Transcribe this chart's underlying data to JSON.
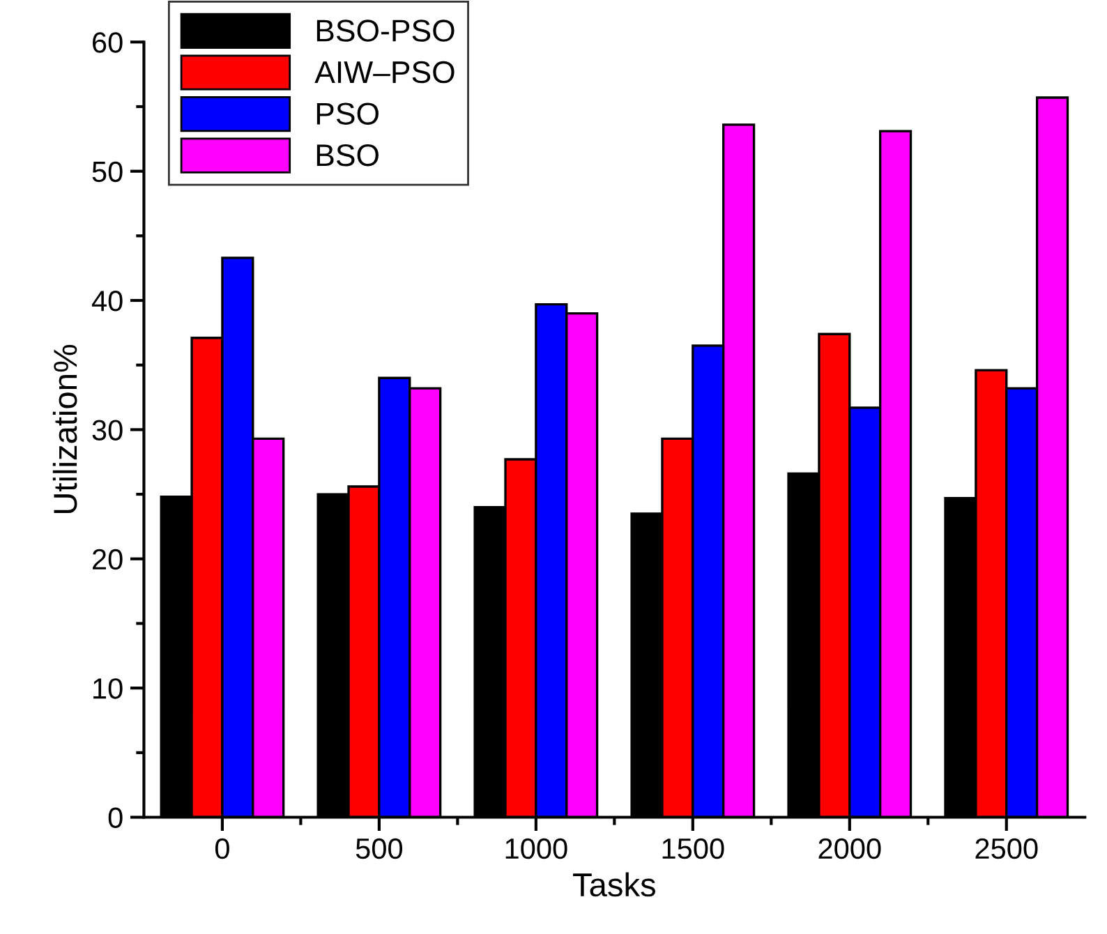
{
  "chart_data": {
    "type": "bar",
    "xlabel": "Tasks",
    "ylabel": "Utilization%",
    "categories": [
      "0",
      "500",
      "1000",
      "1500",
      "2000",
      "2500"
    ],
    "series": [
      {
        "name": "BSO-PSO",
        "color": "#000000",
        "values": [
          24.8,
          25.0,
          24.0,
          23.5,
          26.6,
          24.7
        ]
      },
      {
        "name": "AIW–PSO",
        "color": "#ff0000",
        "values": [
          37.1,
          25.6,
          27.7,
          29.3,
          37.4,
          34.6
        ]
      },
      {
        "name": "PSO",
        "color": "#0000ff",
        "values": [
          43.3,
          34.0,
          39.7,
          36.5,
          31.7,
          33.2
        ]
      },
      {
        "name": "BSO",
        "color": "#ff00ff",
        "values": [
          29.3,
          33.2,
          39.0,
          53.6,
          53.1,
          55.7
        ]
      }
    ],
    "ylim": [
      0,
      60
    ],
    "yticks": [
      0,
      10,
      20,
      30,
      40,
      50,
      60
    ],
    "grid": false,
    "legend": "top left"
  }
}
